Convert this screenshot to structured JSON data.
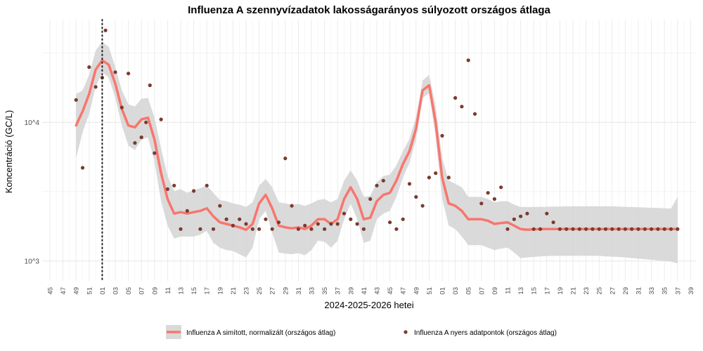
{
  "chart_data": {
    "type": "line",
    "title": "Influenza A szennyvízadatok lakosságarányos súlyozott országos átlaga",
    "xlabel": "2024-2025-2026 hetei",
    "ylabel": "Koncentráció (GC/L)",
    "y_scale": "log10",
    "ylim": [
      720,
      55000
    ],
    "y_ticks": [
      {
        "value": 1000,
        "label": "10^3"
      },
      {
        "value": 10000,
        "label": "10^4"
      }
    ],
    "x_tick_labels": [
      "45",
      "47",
      "49",
      "51",
      "01",
      "03",
      "05",
      "07",
      "09",
      "11",
      "13",
      "15",
      "17",
      "19",
      "21",
      "23",
      "25",
      "27",
      "29",
      "31",
      "33",
      "35",
      "37",
      "39",
      "41",
      "43",
      "45",
      "47",
      "49",
      "51",
      "01",
      "03",
      "05",
      "07",
      "09",
      "11",
      "13",
      "15",
      "17",
      "19",
      "21",
      "23",
      "25",
      "27",
      "29",
      "31",
      "33",
      "35",
      "37",
      "39"
    ],
    "x_range": [
      0,
      98.5
    ],
    "vline_x": 8,
    "grid": true,
    "legend_position": "bottom",
    "series": [
      {
        "name": "Influenza A simított, normalizált (országos átlag)",
        "kind": "smoothed-line-with-band",
        "color": "#f8766d",
        "x": [
          4,
          5,
          6,
          7,
          8,
          9,
          10,
          11,
          12,
          13,
          14,
          15,
          16,
          17,
          18,
          19,
          20,
          21,
          22,
          23,
          24,
          25,
          26,
          27,
          28,
          29,
          30,
          31,
          32,
          33,
          34,
          35,
          36,
          37,
          38,
          39,
          40,
          41,
          42,
          43,
          44,
          45,
          46,
          47,
          48,
          49,
          50,
          51,
          52,
          53,
          54,
          55,
          56,
          57,
          58,
          59,
          60,
          61,
          62,
          63,
          64,
          65,
          66,
          67,
          68,
          69,
          70,
          71,
          72,
          73,
          74,
          75,
          76,
          77,
          78,
          79,
          80,
          81,
          82,
          83,
          84,
          85,
          86,
          87,
          88,
          89,
          90,
          91,
          92,
          93,
          94,
          95,
          96
        ],
        "y": [
          9500,
          12000,
          16000,
          24000,
          28000,
          26000,
          19000,
          12500,
          9500,
          9200,
          10500,
          10800,
          7500,
          4300,
          2800,
          2200,
          2250,
          2200,
          2250,
          2300,
          2400,
          2100,
          1900,
          1850,
          1800,
          1750,
          1680,
          1850,
          2600,
          3000,
          2400,
          1800,
          1750,
          1720,
          1750,
          1700,
          1800,
          2000,
          2000,
          1850,
          2000,
          2800,
          3400,
          2800,
          2000,
          2050,
          2700,
          3000,
          3100,
          3800,
          5000,
          6200,
          9000,
          17000,
          18500,
          10000,
          4000,
          2600,
          2500,
          2300,
          2000,
          2000,
          2000,
          1950,
          1850,
          1880,
          1900,
          1800,
          1700,
          1680,
          1690,
          1700,
          1700,
          1700,
          1700,
          1700,
          1700,
          1700,
          1700,
          1700,
          1700,
          1700,
          1700,
          1700,
          1700,
          1700,
          1700,
          1700,
          1700,
          1700,
          1700,
          1700,
          1700
        ],
        "lower": [
          5500,
          8500,
          11500,
          18000,
          23000,
          21000,
          15000,
          9500,
          6800,
          6300,
          7500,
          7800,
          5200,
          2700,
          1800,
          1450,
          1500,
          1500,
          1500,
          1550,
          1650,
          1350,
          1250,
          1200,
          1180,
          1120,
          1060,
          1250,
          2000,
          2300,
          1600,
          1150,
          1130,
          1120,
          1140,
          1100,
          1200,
          1400,
          1380,
          1250,
          1400,
          2000,
          2600,
          2000,
          1350,
          1400,
          2000,
          2200,
          2300,
          2900,
          4000,
          5100,
          7500,
          15000,
          16200,
          7800,
          2800,
          1800,
          1700,
          1500,
          1300,
          1300,
          1300,
          1250,
          1200,
          1230,
          1250,
          1150,
          1050,
          1060,
          1070,
          1080,
          1085,
          1090,
          1090,
          1090,
          1090,
          1090,
          1090,
          1090,
          1090,
          1080,
          1075,
          1070,
          1060,
          1050,
          1040,
          1030,
          1020,
          1010,
          1000,
          990,
          960
        ],
        "upper": [
          16000,
          17000,
          22000,
          33000,
          38000,
          35000,
          25000,
          17000,
          13500,
          13000,
          14800,
          15000,
          10800,
          6500,
          4100,
          3200,
          3300,
          3100,
          3250,
          3350,
          3500,
          3100,
          2750,
          2700,
          2600,
          2550,
          2450,
          2650,
          3500,
          3900,
          3400,
          2650,
          2600,
          2550,
          2580,
          2500,
          2600,
          2750,
          2800,
          2650,
          2800,
          3800,
          4500,
          3800,
          2900,
          2950,
          3700,
          4100,
          4200,
          4900,
          6200,
          7600,
          11000,
          20000,
          22000,
          13000,
          5500,
          3800,
          3600,
          3400,
          2900,
          2900,
          2900,
          2800,
          2650,
          2700,
          2700,
          2550,
          2450,
          2450,
          2450,
          2460,
          2460,
          2470,
          2470,
          2480,
          2480,
          2480,
          2480,
          2480,
          2480,
          2480,
          2480,
          2470,
          2460,
          2450,
          2440,
          2430,
          2420,
          2410,
          2400,
          2390,
          2900
        ]
      },
      {
        "name": "Influenza A nyers adatpontok (országos átlag)",
        "kind": "points",
        "color": "#7a3b2e",
        "x": [
          4,
          5,
          6,
          7,
          8,
          8.5,
          10,
          11,
          12,
          13,
          14,
          14.7,
          15.3,
          16,
          17,
          18,
          19,
          20,
          21,
          22,
          23,
          24,
          25,
          26,
          27,
          28,
          29,
          30,
          31,
          32,
          33,
          34,
          35,
          36,
          37,
          38,
          39,
          40,
          41,
          42,
          43,
          44,
          45,
          46,
          47,
          48,
          49,
          50,
          51,
          52,
          53,
          54,
          55,
          56,
          57,
          58,
          59,
          60,
          61,
          62,
          63,
          64,
          65,
          66,
          67,
          68,
          69,
          70,
          71,
          72,
          73,
          74,
          75,
          76,
          77,
          78,
          79,
          80,
          81,
          82,
          83,
          84,
          85,
          86,
          87,
          88,
          89,
          90,
          91,
          92,
          93,
          94,
          95,
          96
        ],
        "y": [
          14500,
          4700,
          25000,
          18000,
          21000,
          46000,
          23000,
          12800,
          22500,
          7100,
          7800,
          10000,
          18500,
          6000,
          10500,
          3300,
          3500,
          1700,
          2300,
          3200,
          1700,
          3500,
          1700,
          2500,
          2000,
          1800,
          2000,
          1850,
          1700,
          1700,
          2000,
          1700,
          1900,
          5500,
          2500,
          1700,
          1800,
          1700,
          1850,
          1700,
          1850,
          1850,
          2200,
          2000,
          1850,
          1700,
          2800,
          3500,
          3800,
          1900,
          1700,
          2000,
          3600,
          2900,
          2500,
          4000,
          4300,
          8000,
          4000,
          15000,
          13000,
          28000,
          11500,
          2600,
          3100,
          2800,
          3400,
          1700,
          2000,
          2100,
          2200,
          1700,
          1700,
          2200,
          1900,
          1700,
          1700,
          1700,
          1700,
          1700,
          1700,
          1700,
          1700,
          1700,
          1700,
          1700,
          1700,
          1700,
          1700,
          1700,
          1700,
          1700,
          1700,
          1700
        ]
      }
    ]
  }
}
